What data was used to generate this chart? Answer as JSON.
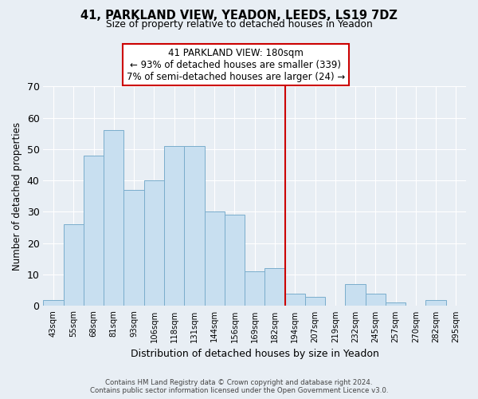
{
  "title1": "41, PARKLAND VIEW, YEADON, LEEDS, LS19 7DZ",
  "title2": "Size of property relative to detached houses in Yeadon",
  "xlabel": "Distribution of detached houses by size in Yeadon",
  "ylabel": "Number of detached properties",
  "bar_labels": [
    "43sqm",
    "55sqm",
    "68sqm",
    "81sqm",
    "93sqm",
    "106sqm",
    "118sqm",
    "131sqm",
    "144sqm",
    "156sqm",
    "169sqm",
    "182sqm",
    "194sqm",
    "207sqm",
    "219sqm",
    "232sqm",
    "245sqm",
    "257sqm",
    "270sqm",
    "282sqm",
    "295sqm"
  ],
  "bar_values": [
    2,
    26,
    48,
    56,
    37,
    40,
    51,
    51,
    30,
    29,
    11,
    12,
    4,
    3,
    0,
    7,
    4,
    1,
    0,
    2,
    0
  ],
  "bar_color": "#c8dff0",
  "bar_edge_color": "#7aadcc",
  "vline_x_index": 11,
  "vline_color": "#cc0000",
  "ylim": [
    0,
    70
  ],
  "annotation_title": "41 PARKLAND VIEW: 180sqm",
  "annotation_line1": "← 93% of detached houses are smaller (339)",
  "annotation_line2": "7% of semi-detached houses are larger (24) →",
  "annotation_box_edge": "#cc0000",
  "footnote1": "Contains HM Land Registry data © Crown copyright and database right 2024.",
  "footnote2": "Contains public sector information licensed under the Open Government Licence v3.0.",
  "background_color": "#e8eef4"
}
